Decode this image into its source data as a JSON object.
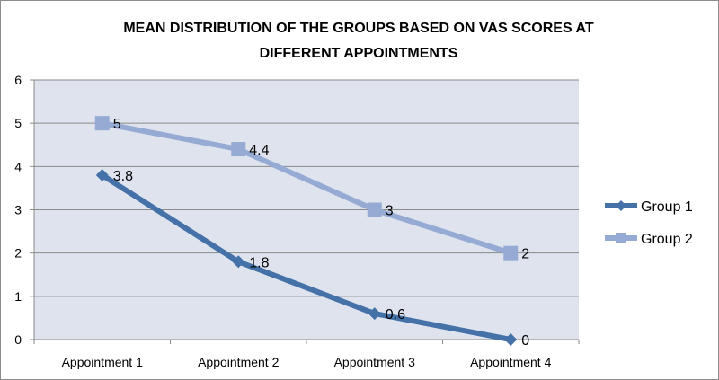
{
  "chart_data": {
    "type": "line",
    "title": "MEAN DISTRIBUTION OF THE GROUPS BASED ON VAS SCORES AT DIFFERENT APPOINTMENTS",
    "title_lines": [
      "MEAN DISTRIBUTION OF THE GROUPS BASED ON VAS SCORES AT",
      "DIFFERENT APPOINTMENTS"
    ],
    "xlabel": "",
    "ylabel": "",
    "categories": [
      "Appointment 1",
      "Appointment 2",
      "Appointment 3",
      "Appointment 4"
    ],
    "ylim": [
      0,
      6
    ],
    "yticks": [
      0,
      1,
      2,
      3,
      4,
      5,
      6
    ],
    "grid": true,
    "legend": "right",
    "series": [
      {
        "name": "Group 1",
        "values": [
          3.8,
          1.8,
          0.6,
          0
        ],
        "labels": [
          "3.8",
          "1.8",
          "0.6",
          "0"
        ],
        "color": "#4472a8",
        "marker": "diamond"
      },
      {
        "name": "Group 2",
        "values": [
          5,
          4.4,
          3,
          2
        ],
        "labels": [
          "5",
          "4.4",
          "3",
          "2"
        ],
        "color": "#95abd3",
        "marker": "square"
      }
    ],
    "plot_background": "#dfe3ee"
  }
}
